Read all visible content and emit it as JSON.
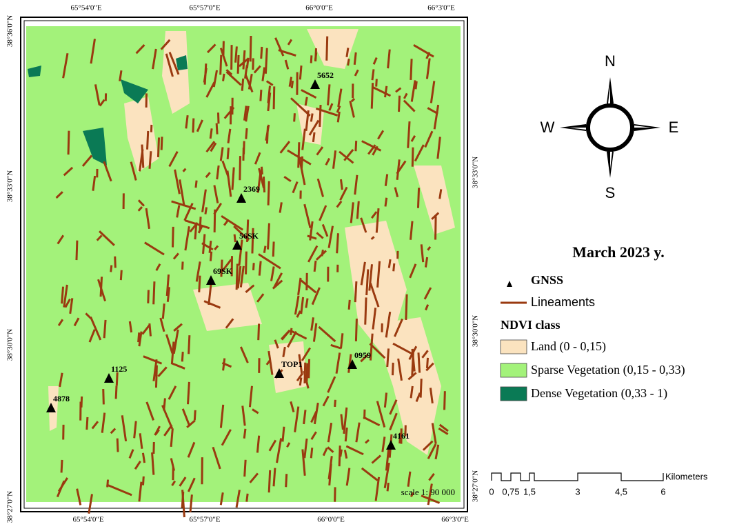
{
  "map": {
    "coords": {
      "top": [
        "65°54'0\"E",
        "65°57'0\"E",
        "66°0'0\"E",
        "66°3'0\"E"
      ],
      "bottom": [
        "65°54'0\"E",
        "65°57'0\"E",
        "66°0'0\"E",
        "66°3'0\"E"
      ],
      "left": [
        "38°36'0\"N",
        "38°33'0\"N",
        "38°30'0\"N",
        "38°27'0\"N"
      ],
      "right": [
        "38°33'0\"N",
        "38°30'0\"N",
        "38°27'0\"N"
      ]
    },
    "stations": [
      "5652",
      "2369",
      "56SK",
      "69SK",
      "TOP1",
      "0959",
      "1125",
      "4878",
      "4161"
    ],
    "scale_note": "scale 1: 90 000",
    "compass": {
      "n": "N",
      "s": "S",
      "w": "W",
      "e": "E"
    },
    "legend": {
      "title": "March 2023 y.",
      "gnss": "GNSS",
      "lineaments": "Lineaments",
      "lineament_color": "#9a3a10",
      "ndvi_title": "NDVI class",
      "classes": [
        {
          "label": "Land (0 - 0,15)",
          "color": "#fbe3bf"
        },
        {
          "label": "Sparse Vegetation (0,15 - 0,33)",
          "color": "#a3f27a"
        },
        {
          "label": "Dense Vegetation (0,33 - 1)",
          "color": "#0a7a55"
        }
      ]
    },
    "scale_bar": {
      "ticks": [
        "0",
        "0,75",
        "1,5",
        "3",
        "4,5",
        "6"
      ],
      "unit": "Kilometers"
    }
  }
}
